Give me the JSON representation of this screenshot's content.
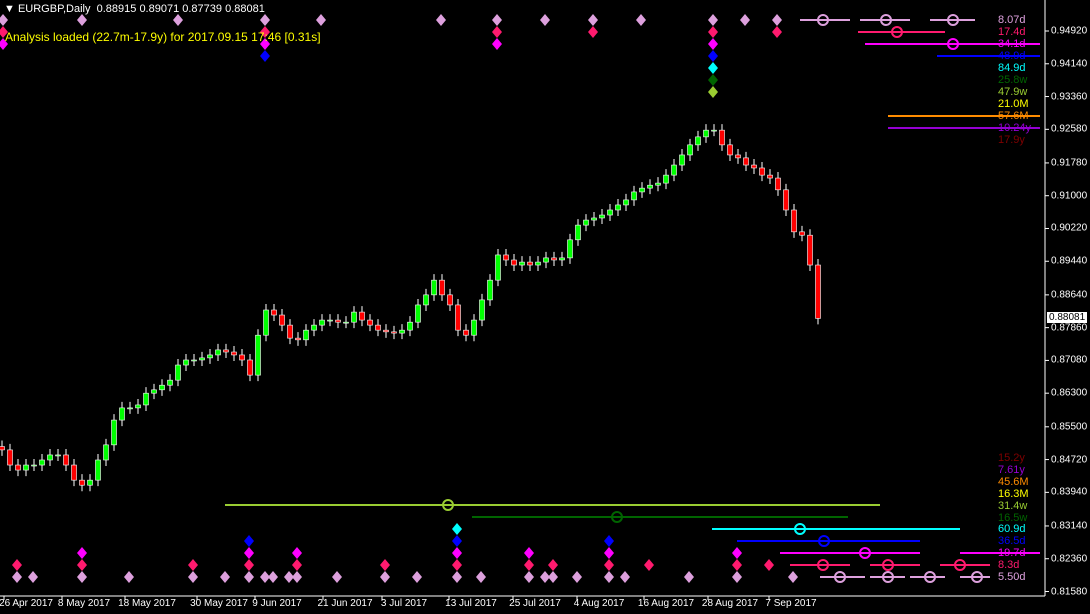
{
  "header": {
    "symbol": "EURGBP,Daily",
    "ohlc": "0.88915 0.89071 0.87739 0.88081"
  },
  "status": "Analysis loaded (22.7m-17.9y) for 2017.09.15 17:46 [0.31s]",
  "current_price": "0.88081",
  "price_axis": [
    "0.94920",
    "0.94140",
    "0.93360",
    "0.92580",
    "0.91780",
    "0.91000",
    "0.90220",
    "0.89440",
    "0.88640",
    "0.87860",
    "0.87080",
    "0.86300",
    "0.85500",
    "0.84720",
    "0.83940",
    "0.83140",
    "0.82360",
    "0.81580"
  ],
  "date_axis": [
    "26 Apr 2017",
    "8 May 2017",
    "18 May 2017",
    "30 May 2017",
    "9 Jun 2017",
    "21 Jun 2017",
    "3 Jul 2017",
    "13 Jul 2017",
    "25 Jul 2017",
    "4 Aug 2017",
    "16 Aug 2017",
    "28 Aug 2017",
    "7 Sep 2017"
  ],
  "cycles_top": [
    {
      "label": "8.07d",
      "color": "#dda0dd"
    },
    {
      "label": "17.4d",
      "color": "#ff1a6e"
    },
    {
      "label": "34.1d",
      "color": "#ff00ff"
    },
    {
      "label": "48.9d",
      "color": "#0000ff"
    },
    {
      "label": "84.9d",
      "color": "#00ffff"
    },
    {
      "label": "25.8w",
      "color": "#006400"
    },
    {
      "label": "47.9w",
      "color": "#9acd32"
    },
    {
      "label": "21.0M",
      "color": "#ffff00"
    },
    {
      "label": "57.6M",
      "color": "#ff8c00"
    },
    {
      "label": "10.24y",
      "color": "#9400d3"
    },
    {
      "label": "17.9y",
      "color": "#800000"
    }
  ],
  "cycles_bottom": [
    {
      "label": "15.2y",
      "color": "#800000"
    },
    {
      "label": "7.61y",
      "color": "#9400d3"
    },
    {
      "label": "45.6M",
      "color": "#ff8c00"
    },
    {
      "label": "16.3M",
      "color": "#ffff00"
    },
    {
      "label": "31.4w",
      "color": "#9acd32"
    },
    {
      "label": "16.5w",
      "color": "#006400"
    },
    {
      "label": "60.9d",
      "color": "#00ffff"
    },
    {
      "label": "36.5d",
      "color": "#0000ff"
    },
    {
      "label": "19.7d",
      "color": "#ff00ff"
    },
    {
      "label": "8.3d",
      "color": "#ff1a6e"
    },
    {
      "label": "5.50d",
      "color": "#dda0dd"
    }
  ],
  "chart_data": {
    "type": "candlestick",
    "ylim": [
      0.8158,
      0.9492
    ],
    "bull_color": "#00ff00",
    "bear_color": "#ff0000",
    "close": [
      0.8495,
      0.8459,
      0.8447,
      0.8459,
      0.8459,
      0.8471,
      0.8483,
      0.8483,
      0.8459,
      0.8423,
      0.8411,
      0.8423,
      0.8471,
      0.8507,
      0.8566,
      0.8595,
      0.8595,
      0.8602,
      0.863,
      0.8638,
      0.8649,
      0.8661,
      0.8697,
      0.8709,
      0.8709,
      0.8714,
      0.8721,
      0.8733,
      0.8728,
      0.8721,
      0.8709,
      0.8673,
      0.8768,
      0.8828,
      0.8816,
      0.8792,
      0.8761,
      0.8757,
      0.878,
      0.8792,
      0.8804,
      0.8804,
      0.8799,
      0.8799,
      0.8823,
      0.8804,
      0.8792,
      0.878,
      0.8776,
      0.8773,
      0.878,
      0.8799,
      0.884,
      0.8864,
      0.8899,
      0.8864,
      0.884,
      0.878,
      0.8768,
      0.8804,
      0.8852,
      0.8899,
      0.8959,
      0.8947,
      0.8935,
      0.8942,
      0.8935,
      0.8942,
      0.8952,
      0.8947,
      0.8952,
      0.8995,
      0.903,
      0.9042,
      0.9047,
      0.9054,
      0.9066,
      0.9078,
      0.909,
      0.9109,
      0.9118,
      0.9125,
      0.913,
      0.9149,
      0.9173,
      0.9197,
      0.9221,
      0.924,
      0.9256,
      0.9256,
      0.9221,
      0.9197,
      0.919,
      0.9173,
      0.9166,
      0.9149,
      0.9142,
      0.9114,
      0.9066,
      0.9014,
      0.9006,
      0.8935,
      0.8808
    ]
  }
}
